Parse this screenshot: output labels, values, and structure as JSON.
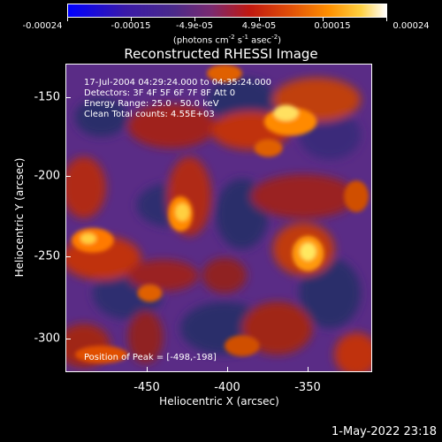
{
  "colorbar": {
    "tick_labels": [
      "-0.00024",
      "-0.00015",
      "-4.9e-05",
      "4.9e-05",
      "0.00015",
      "0.00024"
    ],
    "units_main": "(photons cm",
    "units_exp1": "-2",
    "units_mid1": " s",
    "units_exp2": "-1",
    "units_mid2": " asec",
    "units_exp3": "-2",
    "units_end": ")",
    "range": [
      -0.00024,
      0.00024
    ]
  },
  "chart_data": {
    "type": "heatmap",
    "title": "Reconstructed RHESSI Image",
    "xlabel": "Heliocentric X (arcsec)",
    "ylabel": "Heliocentric Y (arcsec)",
    "x_ticks": [
      "-450",
      "-400",
      "-350"
    ],
    "y_ticks": [
      "-150",
      "-200",
      "-250",
      "-300"
    ],
    "xlim": [
      -499,
      -316
    ],
    "ylim": [
      -321,
      -136
    ],
    "peak": [
      -498,
      -198
    ]
  },
  "info": {
    "line1": "17-Jul-2004 04:29:24.000 to 04:35:24.000",
    "line2": "Detectors: 3F 4F 5F 6F 7F 8F  Att 0",
    "line3": "Energy Range: 25.0 - 50.0 keV",
    "line4": "Clean    Total counts: 4.55E+03",
    "peak_text": "Position of Peak = [-498,-198]"
  },
  "timestamp": "1-May-2022 23:18"
}
